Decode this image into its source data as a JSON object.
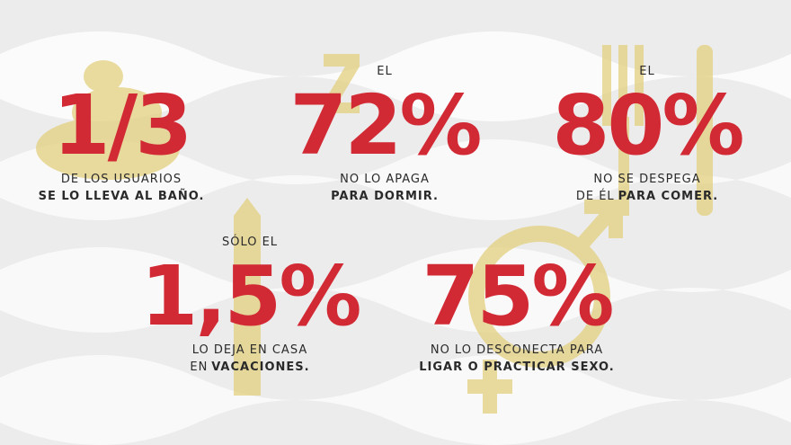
{
  "stats": [
    {
      "prefix": null,
      "value": "1/3",
      "lines": [
        [
          {
            "text": "DE LOS USUARIOS",
            "bold": false
          }
        ],
        [
          {
            "text": "SE LO LLEVA AL BAÑO.",
            "bold": true
          }
        ]
      ]
    },
    {
      "prefix": "EL",
      "value": "72%",
      "lines": [
        [
          {
            "text": "NO LO APAGA",
            "bold": false
          }
        ],
        [
          {
            "text": "PARA DORMIR.",
            "bold": true
          }
        ]
      ]
    },
    {
      "prefix": "EL",
      "value": "80%",
      "lines": [
        [
          {
            "text": "NO SE DESPEGA",
            "bold": false
          }
        ],
        [
          {
            "text": "DE ÉL",
            "bold": false
          },
          {
            "text": "PARA COMER.",
            "bold": true
          }
        ]
      ]
    },
    {
      "prefix": "SÓLO EL",
      "value": "1,5%",
      "lines": [
        [
          {
            "text": "LO DEJA EN CASA",
            "bold": false
          }
        ],
        [
          {
            "text": "EN",
            "bold": false
          },
          {
            "text": "VACACIONES.",
            "bold": true
          }
        ]
      ]
    },
    {
      "prefix": null,
      "value": "75%",
      "lines": [
        [
          {
            "text": "NO LO DESCONECTA PARA",
            "bold": false
          }
        ],
        [
          {
            "text": "LIGAR O PRACTICAR SEXO.",
            "bold": true
          }
        ]
      ]
    }
  ]
}
